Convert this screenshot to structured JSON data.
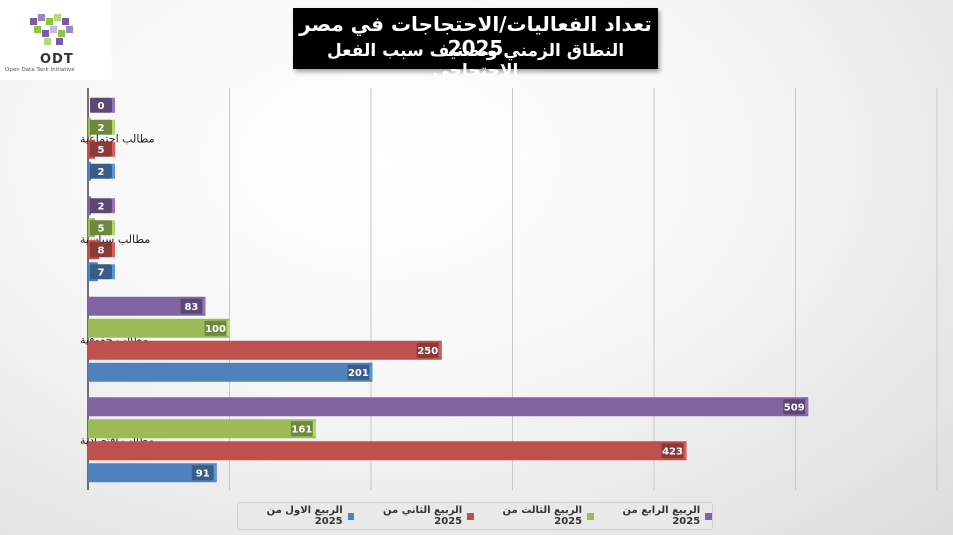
{
  "logo": {
    "name": "ODT",
    "tagline": "Open Data Tank Initiative"
  },
  "chart_data": {
    "type": "bar",
    "orientation": "horizontal",
    "title": "تعداد الفعاليات/الاحتجاجات في مصر 2025",
    "subtitle": "النطاق الزمني وتصنيف سبب الفعل الاحتجاجي",
    "categories": [
      "مطالب اجتماعية",
      "مطالب سياسية",
      "مطالب حقوقية",
      "مطالب اقتصادية"
    ],
    "series": [
      {
        "name": "الربيع الاول من 2025",
        "color": "#4f81bd",
        "values": [
          2,
          7,
          201,
          91
        ]
      },
      {
        "name": "الربيع الثاني من 2025",
        "color": "#c0504d",
        "values": [
          5,
          8,
          250,
          423
        ]
      },
      {
        "name": "الربيع الثالث من 2025",
        "color": "#9bbb59",
        "values": [
          2,
          5,
          100,
          161
        ]
      },
      {
        "name": "الربيع الرابع من 2025",
        "color": "#8064a2",
        "values": [
          0,
          2,
          83,
          509
        ]
      }
    ],
    "xlim": [
      0,
      600
    ],
    "gridlines": true,
    "data_labels": true,
    "legend_position": "bottom"
  }
}
